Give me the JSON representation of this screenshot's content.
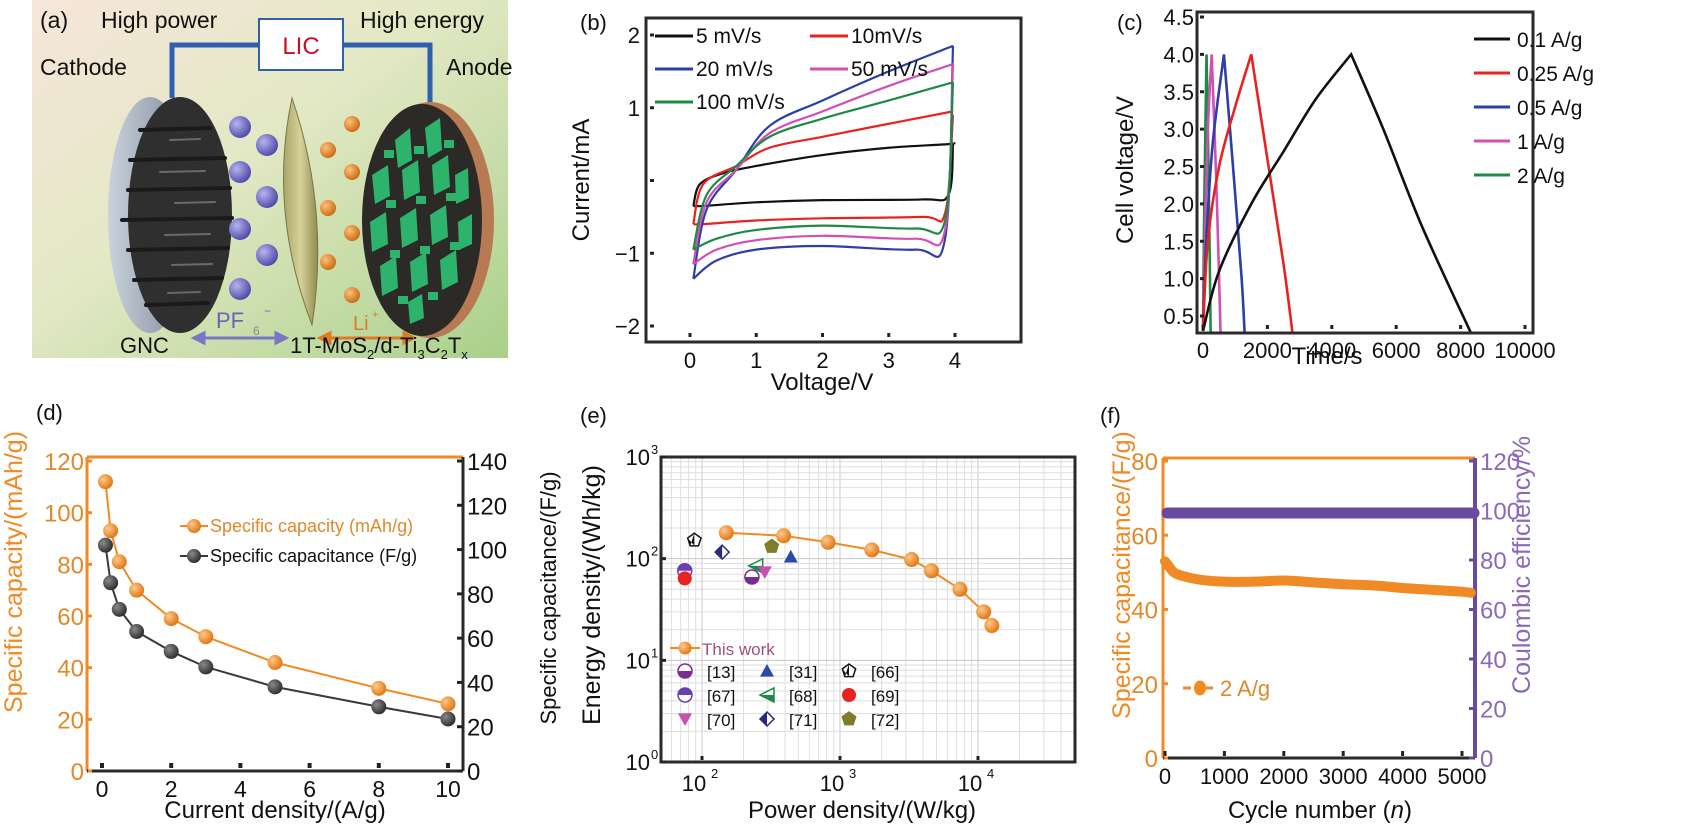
{
  "figure": {
    "panels": [
      "(a)",
      "(b)",
      "(c)",
      "(d)",
      "(e)",
      "(f)"
    ]
  },
  "schematic": {
    "label": "(a)",
    "high_power": "High power",
    "high_energy": "High energy",
    "device": "LIC",
    "cathode": "Cathode",
    "anode": "Anode",
    "anion": "PF",
    "anion_sub": "6",
    "anion_sup": "−",
    "cation": "Li",
    "cation_sup": "+",
    "cathode_material": "GNC",
    "anode_material_parts": [
      "1T-MoS",
      "2",
      "/d-Ti",
      "3",
      "C",
      "2",
      "T",
      "x"
    ],
    "colors": {
      "wire": "#2f5fb0",
      "lic_text": "#c8102e",
      "anion": "#6a63b8",
      "cation": "#e07a1f",
      "active": "#2db36b"
    }
  },
  "chart_data": [
    {
      "panel": "(b)",
      "type": "line",
      "title": "",
      "xlabel": "Voltage/V",
      "ylabel": "Current/mA",
      "xlim": [
        -0.5,
        4.2
      ],
      "ylim": [
        -2.1,
        2.2
      ],
      "xticks": [
        "0",
        "1",
        "2",
        "3",
        "4"
      ],
      "xtick_values": [
        0,
        1,
        2,
        3,
        4
      ],
      "yticks": [
        "2",
        "1",
        "",
        "−1",
        "−2"
      ],
      "ytick_values": [
        2,
        1,
        0,
        -1,
        -2
      ],
      "legend": "top-left",
      "series": [
        {
          "name": "5 mV/s",
          "color": "#111111",
          "upper": [
            [
              0.05,
              -0.35
            ],
            [
              0.15,
              -0.05
            ],
            [
              0.5,
              0.1
            ],
            [
              1,
              0.2
            ],
            [
              2,
              0.35
            ],
            [
              3,
              0.45
            ],
            [
              3.9,
              0.5
            ],
            [
              3.97,
              0.52
            ]
          ],
          "lower": [
            [
              3.97,
              0.5
            ],
            [
              3.9,
              -0.2
            ],
            [
              3.5,
              -0.26
            ],
            [
              2,
              -0.27
            ],
            [
              1,
              -0.3
            ],
            [
              0.2,
              -0.35
            ],
            [
              0.05,
              -0.35
            ]
          ]
        },
        {
          "name": "10mV/s",
          "color": "#e8231f",
          "upper": [
            [
              0.05,
              -0.6
            ],
            [
              0.2,
              -0.05
            ],
            [
              0.7,
              0.2
            ],
            [
              1.2,
              0.45
            ],
            [
              2,
              0.6
            ],
            [
              3,
              0.78
            ],
            [
              3.97,
              0.95
            ]
          ],
          "lower": [
            [
              3.97,
              0.9
            ],
            [
              3.85,
              -0.45
            ],
            [
              3.5,
              -0.5
            ],
            [
              2,
              -0.52
            ],
            [
              1,
              -0.55
            ],
            [
              0.2,
              -0.6
            ],
            [
              0.05,
              -0.6
            ]
          ]
        },
        {
          "name": "20 mV/s",
          "color": "#2b3fa6",
          "upper": [
            [
              0.05,
              -1.35
            ],
            [
              0.25,
              -0.4
            ],
            [
              0.7,
              0.15
            ],
            [
              1.2,
              0.75
            ],
            [
              2,
              1.1
            ],
            [
              3,
              1.5
            ],
            [
              3.97,
              1.85
            ]
          ],
          "lower": [
            [
              3.97,
              1.85
            ],
            [
              3.85,
              -0.8
            ],
            [
              3.4,
              -0.95
            ],
            [
              2,
              -0.9
            ],
            [
              1,
              -0.95
            ],
            [
              0.4,
              -1.1
            ],
            [
              0.05,
              -1.35
            ]
          ]
        },
        {
          "name": "50 mV/s",
          "color": "#d24fb3",
          "upper": [
            [
              0.05,
              -1.15
            ],
            [
              0.25,
              -0.3
            ],
            [
              0.7,
              0.15
            ],
            [
              1.2,
              0.65
            ],
            [
              2,
              0.95
            ],
            [
              3,
              1.3
            ],
            [
              3.97,
              1.6
            ]
          ],
          "lower": [
            [
              3.97,
              1.6
            ],
            [
              3.85,
              -0.68
            ],
            [
              3.4,
              -0.8
            ],
            [
              2,
              -0.76
            ],
            [
              1,
              -0.82
            ],
            [
              0.4,
              -0.95
            ],
            [
              0.05,
              -1.15
            ]
          ]
        },
        {
          "name": "100 mV/s",
          "color": "#1f8a45",
          "upper": [
            [
              0.05,
              -0.95
            ],
            [
              0.25,
              -0.2
            ],
            [
              0.7,
              0.2
            ],
            [
              1.2,
              0.6
            ],
            [
              2,
              0.85
            ],
            [
              3,
              1.1
            ],
            [
              3.97,
              1.35
            ]
          ],
          "lower": [
            [
              3.97,
              1.35
            ],
            [
              3.85,
              -0.55
            ],
            [
              3.4,
              -0.66
            ],
            [
              2,
              -0.62
            ],
            [
              1,
              -0.68
            ],
            [
              0.4,
              -0.8
            ],
            [
              0.05,
              -0.95
            ]
          ]
        }
      ]
    },
    {
      "panel": "(c)",
      "type": "line",
      "title": "",
      "xlabel": "Time/s",
      "ylabel": "Cell voltage/V",
      "xlim": [
        -100,
        10100
      ],
      "ylim": [
        0.2,
        4.5
      ],
      "xticks": [
        "0",
        "2000",
        "4000",
        "6000",
        "8000",
        "10000"
      ],
      "xtick_values": [
        0,
        2000,
        4000,
        6000,
        8000,
        10000
      ],
      "yticks": [
        "4.5",
        "4.0",
        "3.5",
        "3.0",
        "2.5",
        "2.0",
        "1.5",
        "1.0",
        "0.5"
      ],
      "ytick_values": [
        4.5,
        4.0,
        3.5,
        3.0,
        2.5,
        2.0,
        1.5,
        1.0,
        0.5
      ],
      "legend": "top-right",
      "series": [
        {
          "name": "0.1 A/g",
          "color": "#111111",
          "points": [
            [
              0,
              0.3
            ],
            [
              500,
              1.1
            ],
            [
              1500,
              2.0
            ],
            [
              2500,
              2.7
            ],
            [
              3500,
              3.4
            ],
            [
              4600,
              4.0
            ],
            [
              5600,
              3.0
            ],
            [
              6800,
              1.7
            ],
            [
              8400,
              0.2
            ]
          ]
        },
        {
          "name": "0.25  A/g",
          "color": "#e8231f",
          "points": [
            [
              0,
              0.3
            ],
            [
              150,
              1.5
            ],
            [
              500,
              2.5
            ],
            [
              1000,
              3.3
            ],
            [
              1500,
              4.0
            ],
            [
              2000,
              2.6
            ],
            [
              2500,
              1.2
            ],
            [
              2800,
              0.2
            ]
          ]
        },
        {
          "name": "0.5 A/g",
          "color": "#2b3fa6",
          "points": [
            [
              0,
              0.3
            ],
            [
              100,
              1.5
            ],
            [
              300,
              2.8
            ],
            [
              650,
              4.0
            ],
            [
              950,
              2.4
            ],
            [
              1200,
              1.0
            ],
            [
              1300,
              0.2
            ]
          ]
        },
        {
          "name": "1 A/g",
          "color": "#d24fb3",
          "points": [
            [
              0,
              0.3
            ],
            [
              60,
              1.5
            ],
            [
              150,
              3.0
            ],
            [
              270,
              4.0
            ],
            [
              420,
              2.2
            ],
            [
              550,
              0.2
            ]
          ]
        },
        {
          "name": "2 A/g",
          "color": "#1f8a45",
          "points": [
            [
              0,
              0.3
            ],
            [
              40,
              2.0
            ],
            [
              110,
              4.0
            ],
            [
              180,
              2.2
            ],
            [
              240,
              0.2
            ]
          ]
        }
      ]
    },
    {
      "panel": "(d)",
      "type": "line",
      "title": "",
      "xlabel": "Current density/(A/g)",
      "ylabel": "Specific capacity/(mAh/g)",
      "ylabel_right": "Specific capacitance/(F/g)",
      "xlim": [
        -0.3,
        10.3
      ],
      "ylim": [
        0,
        120
      ],
      "ylim_right": [
        0,
        140
      ],
      "xticks": [
        "0",
        "2",
        "4",
        "6",
        "8",
        "10"
      ],
      "xtick_values": [
        0,
        2,
        4,
        6,
        8,
        10
      ],
      "yticks": [
        "0",
        "20",
        "40",
        "60",
        "80",
        "100",
        "120"
      ],
      "ytick_values": [
        0,
        20,
        40,
        60,
        80,
        100,
        120
      ],
      "yticks_right": [
        "0",
        "20",
        "40",
        "60",
        "80",
        "100",
        "120",
        "140"
      ],
      "ytick_values_right": [
        0,
        20,
        40,
        60,
        80,
        100,
        120,
        140
      ],
      "legend": "top-right",
      "series": [
        {
          "name": "Specific capacity (mAh/g)",
          "color": "#f08a24",
          "axis": "left",
          "x": [
            0.1,
            0.25,
            0.5,
            1,
            2,
            3,
            5,
            8,
            10
          ],
          "y": [
            112,
            93,
            81,
            70,
            59,
            52,
            42,
            32,
            26
          ]
        },
        {
          "name": "Specific capacitance (F/g)",
          "color": "#3a3a3a",
          "axis": "right",
          "x": [
            0.1,
            0.25,
            0.5,
            1,
            2,
            3,
            5,
            8,
            10
          ],
          "y": [
            102,
            85,
            73,
            63,
            54,
            47,
            38,
            29,
            23.5
          ]
        }
      ]
    },
    {
      "panel": "(e)",
      "type": "scatter",
      "title": "",
      "xlabel": "Power density/(W/kg)",
      "ylabel": "Energy density/(Wh/kg)",
      "xscale": "log",
      "yscale": "log",
      "xlim": [
        50,
        50000
      ],
      "ylim": [
        1,
        1000
      ],
      "xticks": [
        "10",
        "10",
        "10"
      ],
      "xtick_exps": [
        "2",
        "3",
        "4"
      ],
      "xtick_values": [
        100,
        1000,
        10000
      ],
      "yticks": [
        "10",
        "10",
        "10",
        "10"
      ],
      "ytick_exps": [
        "3",
        "2",
        "1",
        "0"
      ],
      "ytick_values": [
        1000,
        100,
        10,
        1
      ],
      "grid": true,
      "legend": "bottom-left",
      "this_work": {
        "name": "This work",
        "color": "#f08a24",
        "label_color": "#a0507a",
        "x": [
          150,
          390,
          820,
          1700,
          3300,
          4600,
          7400,
          11000,
          12600
        ],
        "y": [
          180,
          168,
          145,
          122,
          98,
          76,
          50,
          30,
          22
        ]
      },
      "references": [
        {
          "name": "[13]",
          "marker": "half-circle-top-open",
          "color": "#7a2d90",
          "x": 230,
          "y": 66
        },
        {
          "name": "[31]",
          "marker": "triangle-up",
          "color": "#2b4aa6",
          "x": 440,
          "y": 104
        },
        {
          "name": "[66]",
          "marker": "pentagon-half",
          "color": "#111111",
          "x": 88,
          "y": 152
        },
        {
          "name": "[67]",
          "marker": "half-circle-bottom-open",
          "color": "#6a3fb0",
          "x": 75,
          "y": 76
        },
        {
          "name": "[68]",
          "marker": "triangle-left-open",
          "color": "#1f8a45",
          "x": 245,
          "y": 85
        },
        {
          "name": "[69]",
          "marker": "circle",
          "color": "#e8231f",
          "x": 75,
          "y": 64
        },
        {
          "name": "[70]",
          "marker": "triangle-down",
          "color": "#c84fb0",
          "x": 285,
          "y": 74
        },
        {
          "name": "[71]",
          "marker": "diamond-half",
          "color": "#2a2a7a",
          "x": 140,
          "y": 116
        },
        {
          "name": "[72]",
          "marker": "pentagon",
          "color": "#7d7d2a",
          "x": 320,
          "y": 132
        }
      ],
      "outer_ylabel": "Specific capacitance/(F/g)"
    },
    {
      "panel": "(f)",
      "type": "line",
      "title": "",
      "xlabel": "Cycle number (",
      "xlabel_italic": "n",
      "xlabel_end": ")",
      "ylabel": "Specific capacitance/(F/g)",
      "ylabel_right": "Coulombic efficiency/%",
      "xlim": [
        0,
        5150
      ],
      "ylim": [
        0,
        80
      ],
      "ylim_right": [
        0,
        120
      ],
      "xticks": [
        "0",
        "1000",
        "2000",
        "3000",
        "4000",
        "5000"
      ],
      "xtick_values": [
        0,
        1000,
        2000,
        3000,
        4000,
        5000
      ],
      "yticks": [
        "0",
        "20",
        "40",
        "60",
        "80"
      ],
      "ytick_values": [
        0,
        20,
        40,
        60,
        80
      ],
      "yticks_right": [
        "0",
        "20",
        "40",
        "60",
        "80",
        "100",
        "120"
      ],
      "ytick_values_right": [
        0,
        20,
        40,
        60,
        80,
        100,
        120
      ],
      "legend": "bottom-left",
      "series": [
        {
          "name": "2 A/g",
          "color": "#f08a24",
          "axis": "left",
          "x": [
            0,
            50,
            150,
            300,
            600,
            1000,
            1500,
            2000,
            2500,
            3000,
            3500,
            4000,
            4500,
            5000,
            5150
          ],
          "y": [
            53,
            52,
            50,
            49,
            48,
            47.5,
            47.5,
            47.8,
            47.3,
            46.8,
            46.5,
            45.8,
            45.3,
            44.8,
            44.5
          ]
        },
        {
          "name": "Coulombic efficiency",
          "color": "#6a4a9e",
          "axis": "right",
          "x": [
            0,
            5150
          ],
          "y": [
            99,
            99
          ]
        }
      ]
    }
  ]
}
